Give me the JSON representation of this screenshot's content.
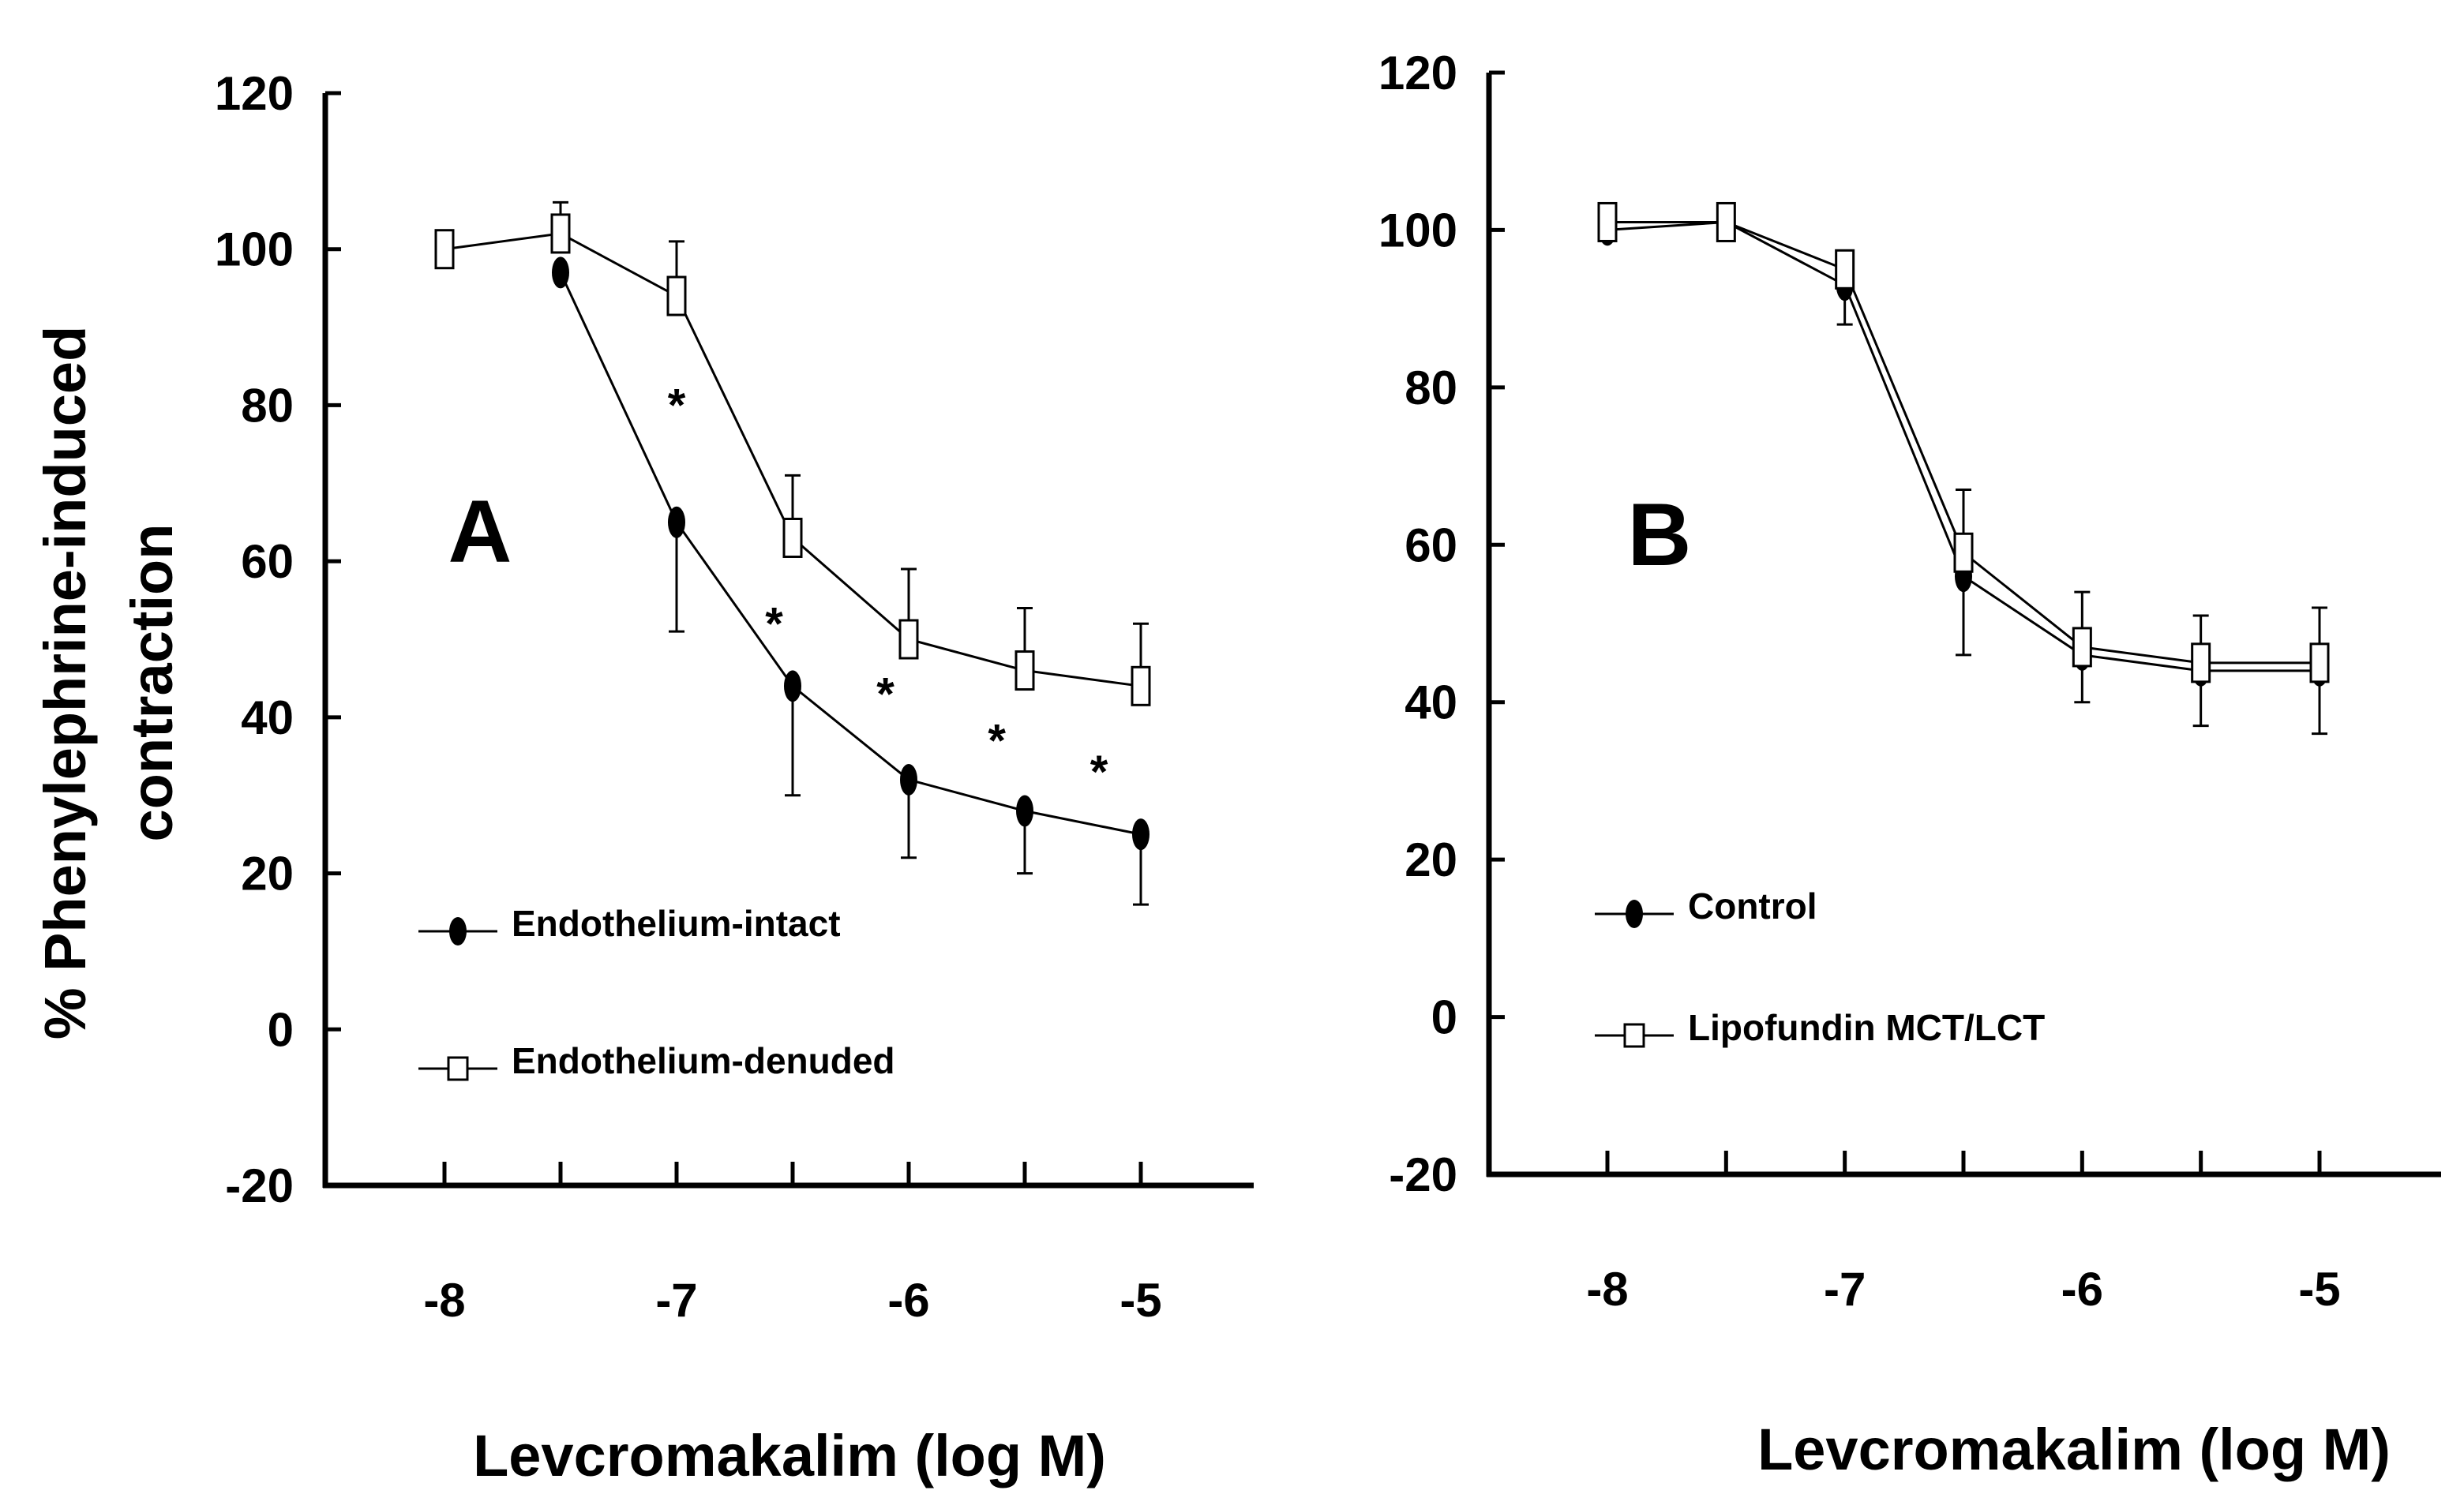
{
  "ylabel_lines": [
    "% Phenylephrine-induced",
    "contraction"
  ],
  "chart_data": [
    {
      "type": "line",
      "panel": "A",
      "xlabel": "Levcromakalim (log M)",
      "ylabel": "% Phenylephrine-induced contraction",
      "ylim": [
        -20,
        120
      ],
      "yticks": [
        -20,
        0,
        20,
        40,
        60,
        80,
        100,
        120
      ],
      "xticks": [
        -8,
        -7,
        -6,
        -5
      ],
      "x": [
        -8,
        -7.5,
        -7,
        -6.5,
        -6,
        -5.5,
        -5
      ],
      "series": [
        {
          "name": "Endothelium-intact",
          "marker": "filled-ellipse",
          "x": [
            -7.5,
            -7,
            -6.5,
            -6,
            -5.5,
            -5
          ],
          "values": [
            97,
            65,
            44,
            32,
            28,
            25
          ],
          "error_lower": [
            null,
            51,
            30,
            22,
            20,
            16
          ],
          "error_upper": [
            null,
            null,
            null,
            null,
            null,
            null
          ]
        },
        {
          "name": "Endothelium-denuded",
          "marker": "open-square",
          "x": [
            -8,
            -7.5,
            -7,
            -6.5,
            -6,
            -5.5,
            -5
          ],
          "values": [
            100,
            102,
            94,
            63,
            50,
            46,
            44
          ],
          "error_lower": [
            null,
            null,
            null,
            null,
            null,
            null,
            null
          ],
          "error_upper": [
            null,
            106,
            101,
            71,
            59,
            54,
            52
          ]
        }
      ],
      "annotations": [
        {
          "text": "*",
          "x": -7,
          "y": 81
        },
        {
          "text": "*",
          "x": -6.58,
          "y": 53
        },
        {
          "text": "*",
          "x": -6.1,
          "y": 44
        },
        {
          "text": "*",
          "x": -5.62,
          "y": 38
        },
        {
          "text": "*",
          "x": -5.18,
          "y": 34
        }
      ],
      "legend_position": "lower-left"
    },
    {
      "type": "line",
      "panel": "B",
      "xlabel": "Levcromakalim (log M)",
      "ylim": [
        -20,
        120
      ],
      "yticks": [
        -20,
        0,
        20,
        40,
        60,
        80,
        100,
        120
      ],
      "xticks": [
        -8,
        -7,
        -6,
        -5
      ],
      "x": [
        -8,
        -7.5,
        -7,
        -6.5,
        -6,
        -5.5,
        -5
      ],
      "series": [
        {
          "name": "Control",
          "marker": "filled-ellipse",
          "x": [
            -8,
            -7.5,
            -7,
            -6.5,
            -6,
            -5.5,
            -5
          ],
          "values": [
            100,
            101,
            93,
            56,
            46,
            44,
            44
          ],
          "error_lower": [
            null,
            null,
            88,
            46,
            40,
            37,
            36
          ],
          "error_upper": [
            null,
            null,
            null,
            null,
            null,
            null,
            null
          ]
        },
        {
          "name": "Lipofundin MCT/LCT",
          "marker": "open-square",
          "x": [
            -8,
            -7.5,
            -7,
            -6.5,
            -6,
            -5.5,
            -5
          ],
          "values": [
            101,
            101,
            95,
            59,
            47,
            45,
            45
          ],
          "error_lower": [
            null,
            null,
            null,
            null,
            null,
            null,
            null
          ],
          "error_upper": [
            103,
            103,
            null,
            67,
            54,
            51,
            52
          ]
        }
      ],
      "annotations": [],
      "legend_position": "lower-left"
    }
  ]
}
